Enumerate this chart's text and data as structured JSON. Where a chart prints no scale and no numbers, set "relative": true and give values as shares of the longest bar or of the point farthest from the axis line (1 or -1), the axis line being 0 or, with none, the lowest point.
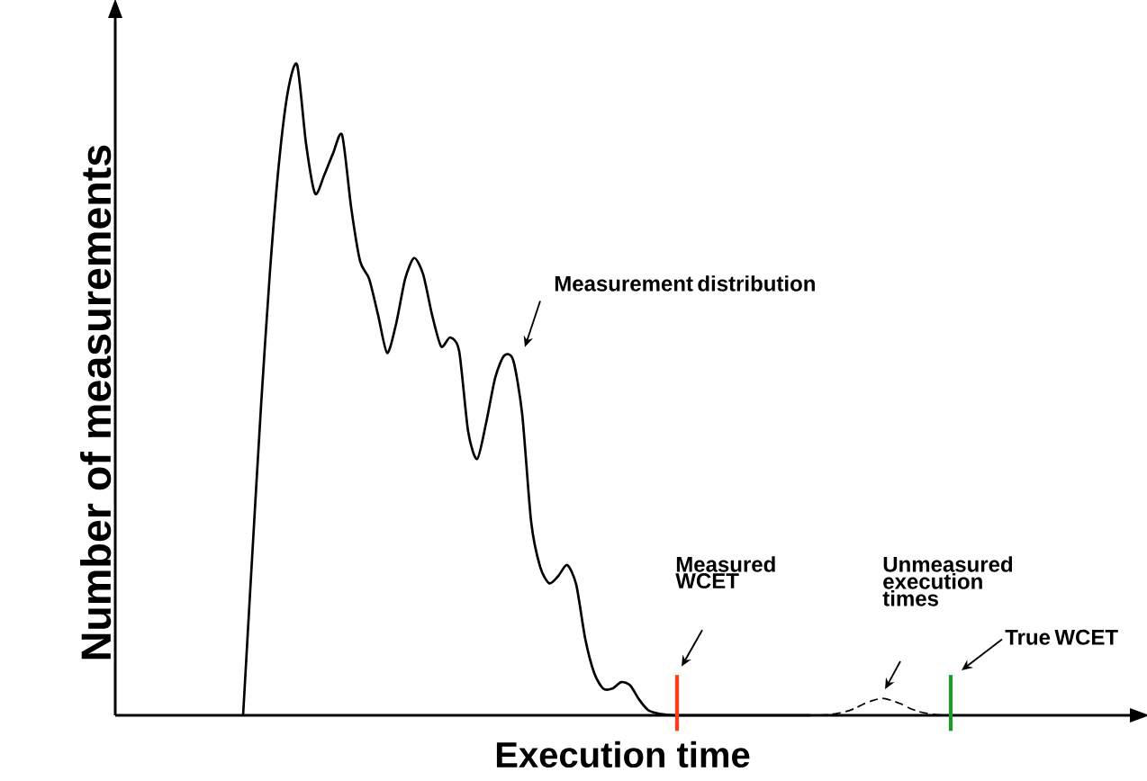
{
  "chart_data": {
    "type": "line",
    "relative": true,
    "xlabel": "Execution time",
    "ylabel": "Number of measurements",
    "categories": [
      null,
      null,
      null,
      null,
      null,
      null,
      null,
      null,
      null,
      null,
      null,
      null,
      null,
      null,
      null,
      null,
      null,
      null,
      null,
      null,
      null,
      null,
      null,
      null,
      null,
      null,
      null,
      null,
      null,
      null,
      null,
      null,
      null,
      null,
      null,
      null,
      null,
      null,
      null,
      null,
      null,
      null,
      null,
      null,
      null,
      null,
      null,
      null,
      null,
      null,
      null,
      null,
      null,
      null,
      null,
      null,
      null,
      null,
      null,
      null,
      null,
      null,
      null,
      null,
      null,
      null,
      null,
      null,
      null,
      null,
      null,
      null,
      null,
      null,
      null,
      null,
      null,
      null,
      null,
      null,
      null,
      null,
      null,
      null,
      null,
      null,
      null,
      null,
      null,
      null,
      null,
      null,
      null,
      null,
      null,
      null,
      null,
      null,
      null,
      null,
      null,
      null,
      null,
      null,
      null,
      null,
      null,
      null,
      null,
      null,
      null
    ],
    "series": [
      {
        "color": "#000000",
        "line_style": "solid",
        "values": [
          null,
          null,
          null,
          null,
          null,
          null,
          null,
          null,
          null,
          null,
          null,
          null,
          null,
          null,
          0,
          0.242,
          0.477,
          0.685,
          0.851,
          0.961,
          1,
          0.878,
          0.802,
          0.83,
          0.864,
          0.892,
          0.781,
          0.698,
          0.671,
          0.615,
          0.557,
          0.602,
          0.671,
          0.703,
          0.678,
          0.615,
          0.567,
          0.581,
          0.56,
          0.436,
          0.394,
          0.45,
          0.519,
          0.553,
          0.546,
          0.463,
          0.297,
          0.228,
          0.203,
          0.214,
          0.231,
          0.201,
          0.118,
          0.065,
          0.041,
          0.041,
          0.051,
          0.046,
          0.024,
          0.008,
          0.003,
          0.001,
          0,
          0,
          0,
          0,
          0,
          0,
          0,
          0,
          0,
          0,
          0,
          0,
          0,
          0,
          0,
          0,
          null,
          null,
          null,
          null,
          null,
          null,
          null,
          null,
          null,
          null,
          null,
          null,
          null,
          null,
          null,
          null,
          null,
          null,
          null,
          null,
          null,
          null,
          null,
          null,
          null,
          null,
          null,
          null,
          null,
          null,
          null,
          null,
          null
        ]
      },
      {
        "color": "#000000",
        "line_style": "dashed",
        "values": [
          null,
          null,
          null,
          null,
          null,
          null,
          null,
          null,
          null,
          null,
          null,
          null,
          null,
          null,
          null,
          null,
          null,
          null,
          null,
          null,
          null,
          null,
          null,
          null,
          null,
          null,
          null,
          null,
          null,
          null,
          null,
          null,
          null,
          null,
          null,
          null,
          null,
          null,
          null,
          null,
          null,
          null,
          null,
          null,
          null,
          null,
          null,
          null,
          null,
          null,
          null,
          null,
          null,
          null,
          null,
          null,
          null,
          null,
          null,
          null,
          null,
          null,
          null,
          null,
          null,
          null,
          null,
          null,
          null,
          null,
          null,
          null,
          null,
          null,
          null,
          null,
          null,
          null,
          0,
          0.001,
          0.003,
          0.006,
          0.011,
          0.018,
          0.023,
          0.026,
          0.023,
          0.018,
          0.011,
          0.006,
          0.003,
          0.001,
          0,
          0,
          0,
          0,
          null,
          null,
          null,
          null,
          null,
          null,
          null,
          null,
          null,
          null,
          null,
          null,
          null,
          null,
          null
        ]
      }
    ],
    "annotations": [
      "Measurement distribution",
      "Unmeasured execution times",
      "Measured WCET",
      "True WCET"
    ]
  }
}
